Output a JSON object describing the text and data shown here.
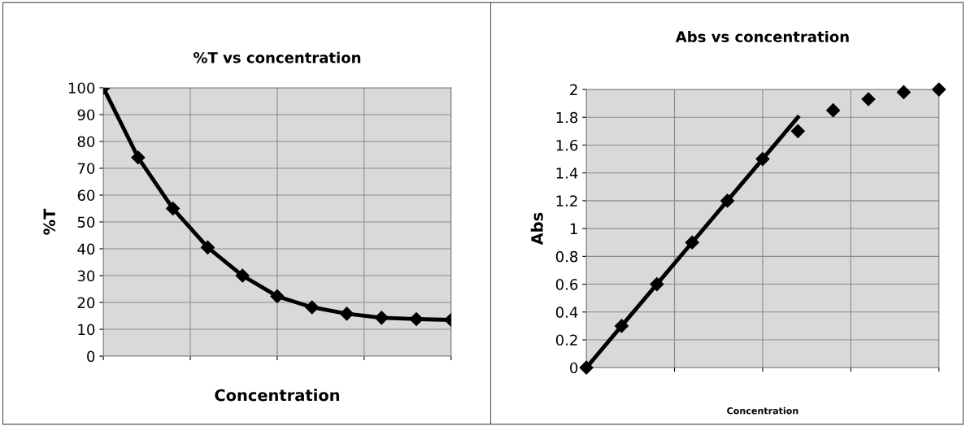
{
  "chart_data": [
    {
      "type": "line",
      "title": "%T vs concentration",
      "xlabel": "Concentration",
      "ylabel": "%T",
      "categories": [
        null,
        null,
        null,
        null,
        null,
        null,
        null,
        null,
        null,
        null,
        null
      ],
      "ylim": [
        0,
        100
      ],
      "yticks": [
        0,
        10,
        20,
        30,
        40,
        50,
        60,
        70,
        80,
        90,
        100
      ],
      "grid": true,
      "marker": "diamond",
      "line_style": "solid",
      "series": [
        {
          "color": "#000000",
          "values": [
            100,
            74,
            55,
            40.5,
            30,
            22.3,
            18.2,
            15.8,
            14.3,
            13.8,
            13.5
          ]
        }
      ]
    },
    {
      "type": "scatter",
      "title": "Abs vs concentration",
      "xlabel": "Concentration",
      "ylabel": "Abs",
      "categories": [
        null,
        null,
        null,
        null,
        null,
        null,
        null,
        null,
        null,
        null,
        null
      ],
      "ylim": [
        0,
        2
      ],
      "yticks": [
        0,
        0.2,
        0.4,
        0.6,
        0.8,
        1,
        1.2,
        1.4,
        1.6,
        1.8,
        2
      ],
      "grid": true,
      "marker": "diamond",
      "series": [
        {
          "color": "#000000",
          "values": [
            0,
            0.3,
            0.6,
            0.9,
            1.2,
            1.5,
            1.7,
            1.85,
            1.93,
            1.98,
            2.0
          ]
        },
        {
          "type": "line",
          "marker": "none",
          "color": "#000000",
          "values": [
            0,
            0.3,
            0.6,
            0.9,
            1.2,
            1.5,
            1.8,
            null,
            null,
            null,
            null
          ]
        }
      ]
    }
  ]
}
